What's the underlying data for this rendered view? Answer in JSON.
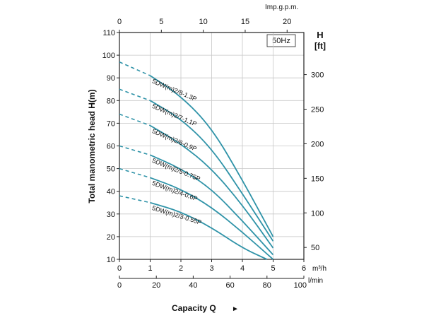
{
  "chart_data": {
    "type": "line",
    "ylabel": "Total manometric head H(m)",
    "xlabel": "Capacity Q",
    "xlabel_arrow": "►",
    "frequency_badge": "50Hz",
    "right_axis_title": "H",
    "right_axis_unit": "[ft]",
    "bottom_axis_unit": "m³/h",
    "lpm_axis_unit": "l/min",
    "top_axis_unit": "Imp.g.p.m.",
    "xlim": [
      0,
      6
    ],
    "ylim": [
      10,
      110
    ],
    "x_ticks": [
      "0",
      "1",
      "2",
      "3",
      "4",
      "5",
      "6"
    ],
    "y_ticks": [
      "10",
      "20",
      "30",
      "40",
      "50",
      "60",
      "70",
      "80",
      "90",
      "100",
      "110"
    ],
    "ft_ticks": [
      "50",
      "100",
      "150",
      "200",
      "250",
      "300"
    ],
    "lpm_ticks": [
      "0",
      "20",
      "40",
      "60",
      "80",
      "100"
    ],
    "impgpm_ticks": [
      "0",
      "5",
      "10",
      "15",
      "20"
    ],
    "series": [
      {
        "name": "5DW(m)2/8-1.3P",
        "x": [
          0,
          1,
          2,
          3,
          4,
          5
        ],
        "y": [
          97,
          91,
          82,
          68,
          45,
          20
        ]
      },
      {
        "name": "5DW(m)2/7-1.1P",
        "x": [
          0,
          1,
          2,
          3,
          4,
          5
        ],
        "y": [
          85,
          80,
          72,
          59,
          39,
          18
        ]
      },
      {
        "name": "5DW(m)2/6-0.9P",
        "x": [
          0,
          1,
          2,
          3,
          4,
          5
        ],
        "y": [
          74,
          69,
          61,
          50,
          34,
          15
        ]
      },
      {
        "name": "5DW(m)2/5-0.75P",
        "x": [
          0,
          1,
          2,
          3,
          4,
          5
        ],
        "y": [
          60,
          56,
          50,
          41,
          27,
          12
        ]
      },
      {
        "name": "5DW(m)2/4-0.6P",
        "x": [
          0,
          1,
          2,
          3,
          4,
          5
        ],
        "y": [
          50,
          46,
          41,
          33,
          22,
          10
        ]
      },
      {
        "name": "5DW(m)2/3-0.55P",
        "x": [
          0,
          1,
          2,
          3,
          4,
          4.8
        ],
        "y": [
          38,
          35,
          31,
          24,
          15,
          10
        ]
      }
    ],
    "dashed_until_x": 1,
    "grid": true,
    "line_color": "#2f93a8"
  }
}
